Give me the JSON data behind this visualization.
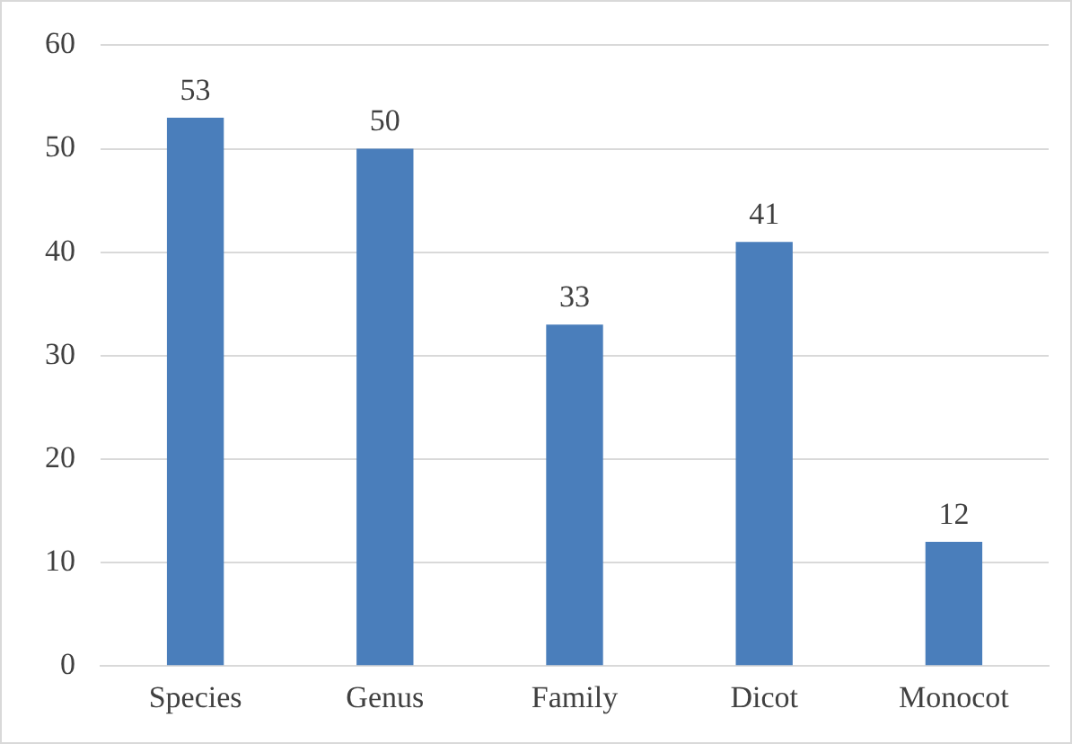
{
  "chart_data": {
    "type": "bar",
    "categories": [
      "Species",
      "Genus",
      "Family",
      "Dicot",
      "Monocot"
    ],
    "values": [
      53,
      50,
      33,
      41,
      12
    ],
    "color": "#4a7ebb",
    "ylim": [
      0,
      60
    ],
    "yticks": [
      0,
      10,
      20,
      30,
      40,
      50,
      60
    ],
    "grid": "y",
    "data_labels": true,
    "legend": false
  }
}
